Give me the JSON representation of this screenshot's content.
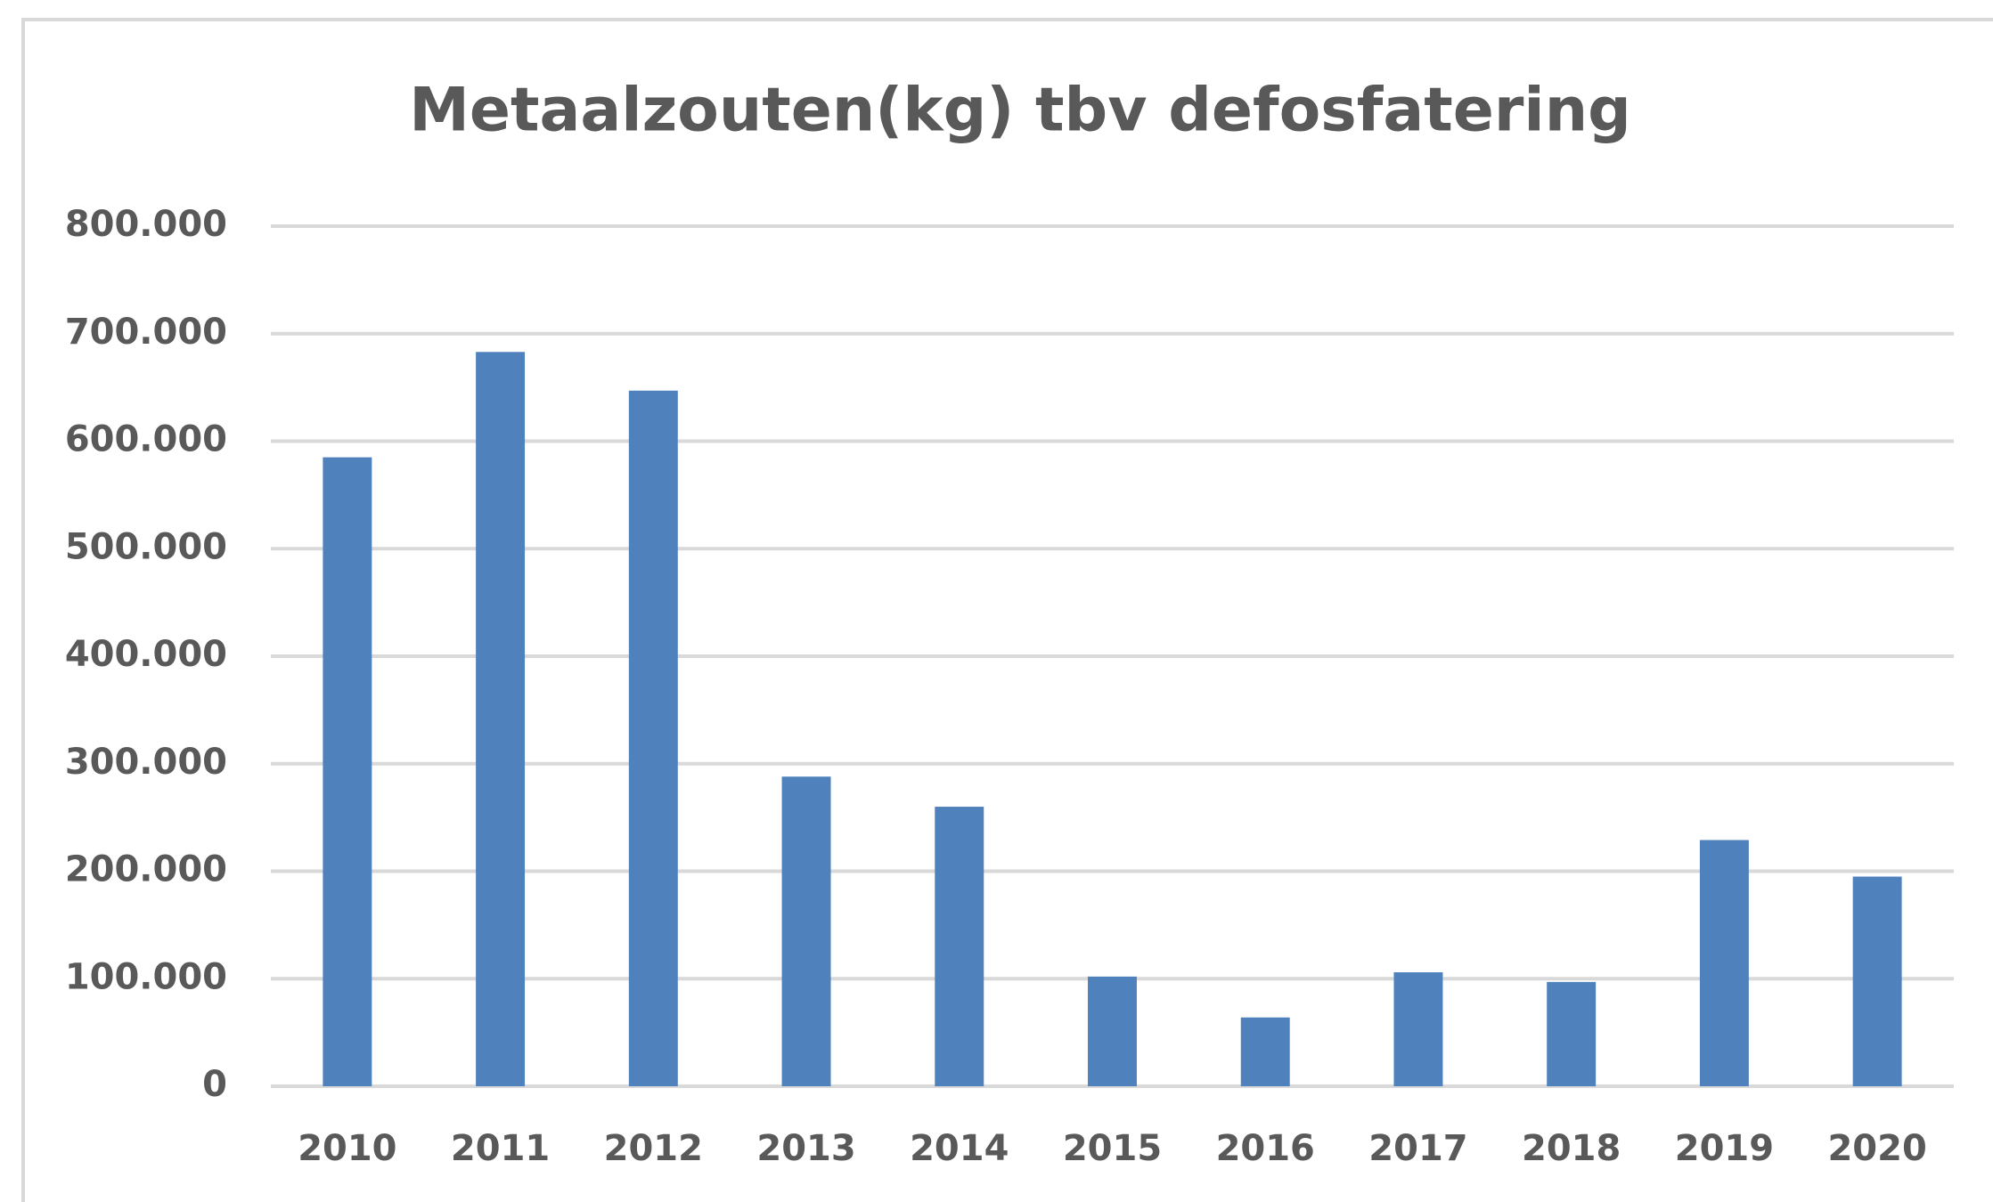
{
  "chart_data": {
    "type": "bar",
    "title": "Metaalzouten(kg) tbv defosfatering",
    "categories": [
      "2010",
      "2011",
      "2012",
      "2013",
      "2014",
      "2015",
      "2016",
      "2017",
      "2018",
      "2019",
      "2020"
    ],
    "values": [
      585000,
      683000,
      647000,
      288000,
      260000,
      102000,
      64000,
      106000,
      97000,
      229000,
      195000
    ],
    "color": "#4f81bd",
    "ylim": [
      0,
      800000
    ],
    "yticks": [
      0,
      {
        "value": 100000,
        "label": "100.000"
      },
      {
        "value": 200000,
        "label": "200.000"
      },
      {
        "value": 300000,
        "label": "300.000"
      },
      {
        "value": 400000,
        "label": "400.000"
      },
      {
        "value": 500000,
        "label": "500.000"
      },
      {
        "value": 600000,
        "label": "600.000"
      },
      {
        "value": 700000,
        "label": "700.000"
      },
      {
        "value": 800000,
        "label": "800.000"
      }
    ],
    "grid": true
  }
}
